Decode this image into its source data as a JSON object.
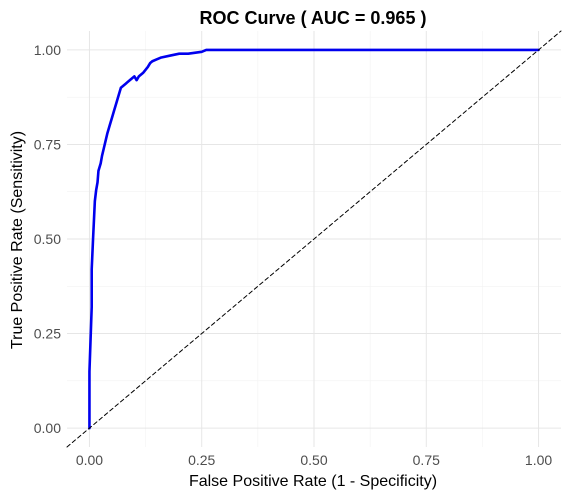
{
  "chart_data": {
    "type": "line",
    "title": "ROC Curve ( AUC = 0.965 )",
    "xlabel": "False Positive Rate (1 - Specificity)",
    "ylabel": "True Positive Rate (Sensitivity)",
    "xlim": [
      -0.05,
      1.05
    ],
    "ylim": [
      -0.05,
      1.05
    ],
    "x_ticks": [
      0,
      0.25,
      0.5,
      0.75,
      1
    ],
    "x_tick_labels": [
      "0.00",
      "0.25",
      "0.50",
      "0.75",
      "1.00"
    ],
    "y_ticks": [
      0,
      0.25,
      0.5,
      0.75,
      1
    ],
    "y_tick_labels": [
      "0.00",
      "0.25",
      "0.50",
      "0.75",
      "1.00"
    ],
    "grid": true,
    "series": [
      {
        "color": "#0000ee",
        "style": "solid",
        "x": [
          0,
          0,
          0.005,
          0.005,
          0.008,
          0.01,
          0.012,
          0.015,
          0.018,
          0.02,
          0.025,
          0.028,
          0.032,
          0.036,
          0.04,
          0.045,
          0.05,
          0.055,
          0.06,
          0.065,
          0.07,
          0.08,
          0.09,
          0.1,
          0.105,
          0.11,
          0.12,
          0.13,
          0.135,
          0.14,
          0.15,
          0.16,
          0.18,
          0.2,
          0.22,
          0.25,
          0.26,
          0.4,
          0.6,
          0.8,
          1
        ],
        "y": [
          0,
          0.15,
          0.32,
          0.42,
          0.5,
          0.55,
          0.6,
          0.63,
          0.65,
          0.68,
          0.7,
          0.72,
          0.74,
          0.76,
          0.78,
          0.8,
          0.82,
          0.84,
          0.86,
          0.88,
          0.9,
          0.91,
          0.92,
          0.93,
          0.92,
          0.93,
          0.94,
          0.955,
          0.965,
          0.97,
          0.975,
          0.98,
          0.985,
          0.99,
          0.99,
          0.995,
          1,
          1,
          1,
          1,
          1
        ]
      },
      {
        "color": "#000000",
        "style": "dashed",
        "x": [
          -0.05,
          1.05
        ],
        "y": [
          -0.05,
          1.05
        ]
      }
    ],
    "colors": {
      "background": "#ffffff",
      "grid_major": "#e6e6e6",
      "grid_minor": "#f2f2f2",
      "roc_line": "#0000ee",
      "reference_line": "#000000",
      "tick_text": "#4d4d4d"
    }
  }
}
